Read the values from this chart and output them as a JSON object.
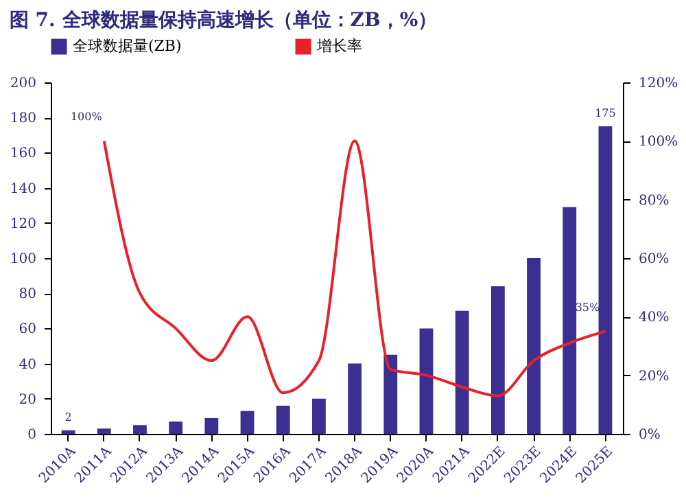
{
  "chart_data": {
    "type": "bar",
    "title": "图 7. 全球数据量保持高速增长（单位：ZB，%）",
    "categories": [
      "2010A",
      "2011A",
      "2012A",
      "2013A",
      "2014A",
      "2015A",
      "2016A",
      "2017A",
      "2018A",
      "2019A",
      "2020A",
      "2021A",
      "2022E",
      "2023E",
      "2024E",
      "2025E"
    ],
    "series": [
      {
        "name": "全球数据量(ZB)",
        "color": "#3b2f92",
        "values": [
          2,
          3,
          5,
          7,
          9,
          13,
          16,
          20,
          40,
          45,
          60,
          70,
          84,
          100,
          129,
          175
        ],
        "value_labels": [
          "2",
          null,
          null,
          null,
          null,
          null,
          null,
          null,
          null,
          null,
          null,
          null,
          null,
          null,
          null,
          "175"
        ]
      },
      {
        "name": "增长率",
        "type": "line",
        "axis": "y2",
        "color": "#e8202a",
        "values": [
          null,
          100,
          48,
          36,
          25,
          40,
          14,
          25,
          100,
          22,
          20,
          16,
          13,
          25,
          31,
          35
        ],
        "value_labels": [
          null,
          "100%",
          null,
          null,
          null,
          null,
          null,
          null,
          null,
          null,
          null,
          null,
          null,
          null,
          null,
          "35%"
        ]
      }
    ],
    "ylim": [
      0,
      200
    ],
    "yticks": [
      0,
      20,
      40,
      60,
      80,
      100,
      120,
      140,
      160,
      180,
      200
    ],
    "y2lim": [
      0,
      120
    ],
    "y2ticks": [
      {
        "value": 0,
        "label": "0%"
      },
      {
        "value": 20,
        "label": "20%"
      },
      {
        "value": 40,
        "label": "40%"
      },
      {
        "value": 60,
        "label": "60%"
      },
      {
        "value": 80,
        "label": "80%"
      },
      {
        "value": 100,
        "label": "100%"
      },
      {
        "value": 120,
        "label": "120%"
      }
    ],
    "legend": "top",
    "grid": false
  }
}
